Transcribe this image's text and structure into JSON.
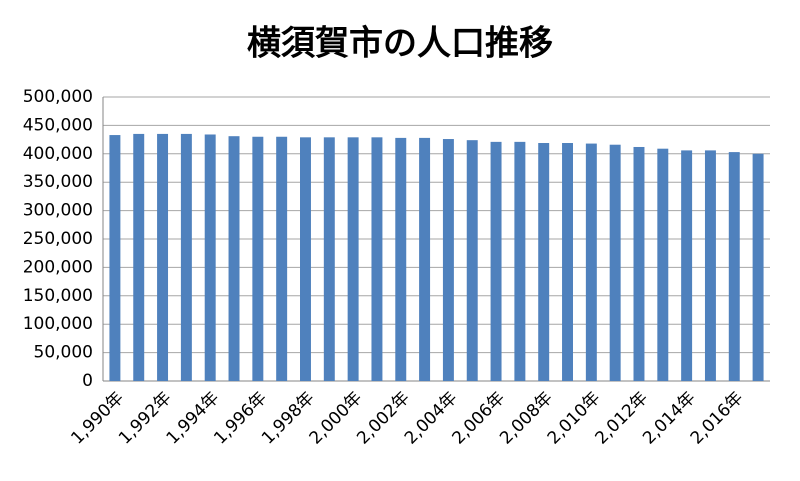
{
  "chart_data": {
    "type": "bar",
    "title": "横須賀市の人口推移",
    "categories": [
      "1,990年",
      null,
      "1,992年",
      null,
      "1,994年",
      null,
      "1,996年",
      null,
      "1,998年",
      null,
      "2,000年",
      null,
      "2,002年",
      null,
      "2,004年",
      null,
      "2,006年",
      null,
      "2,008年",
      null,
      "2,010年",
      null,
      "2,012年",
      null,
      "2,014年",
      null,
      "2,016年",
      null
    ],
    "values": [
      433000,
      435000,
      435000,
      435000,
      434000,
      431000,
      430000,
      430000,
      429000,
      429000,
      429000,
      429000,
      428000,
      428000,
      426000,
      424000,
      421000,
      421000,
      419000,
      419000,
      418000,
      416000,
      412000,
      409000,
      406000,
      406000,
      403000,
      400000
    ],
    "color": "#4f81bd",
    "ylim": [
      0,
      500000
    ],
    "yticks": [
      0,
      {
        "value": 50000,
        "label": "50,000"
      },
      {
        "value": 100000,
        "label": "100,000"
      },
      {
        "value": 150000,
        "label": "150,000"
      },
      {
        "value": 200000,
        "label": "200,000"
      },
      {
        "value": 250000,
        "label": "250,000"
      },
      {
        "value": 300000,
        "label": "300,000"
      },
      {
        "value": 350000,
        "label": "350,000"
      },
      {
        "value": 400000,
        "label": "400,000"
      },
      {
        "value": 450000,
        "label": "450,000"
      },
      {
        "value": 500000,
        "label": "500,000"
      }
    ],
    "grid": true
  }
}
